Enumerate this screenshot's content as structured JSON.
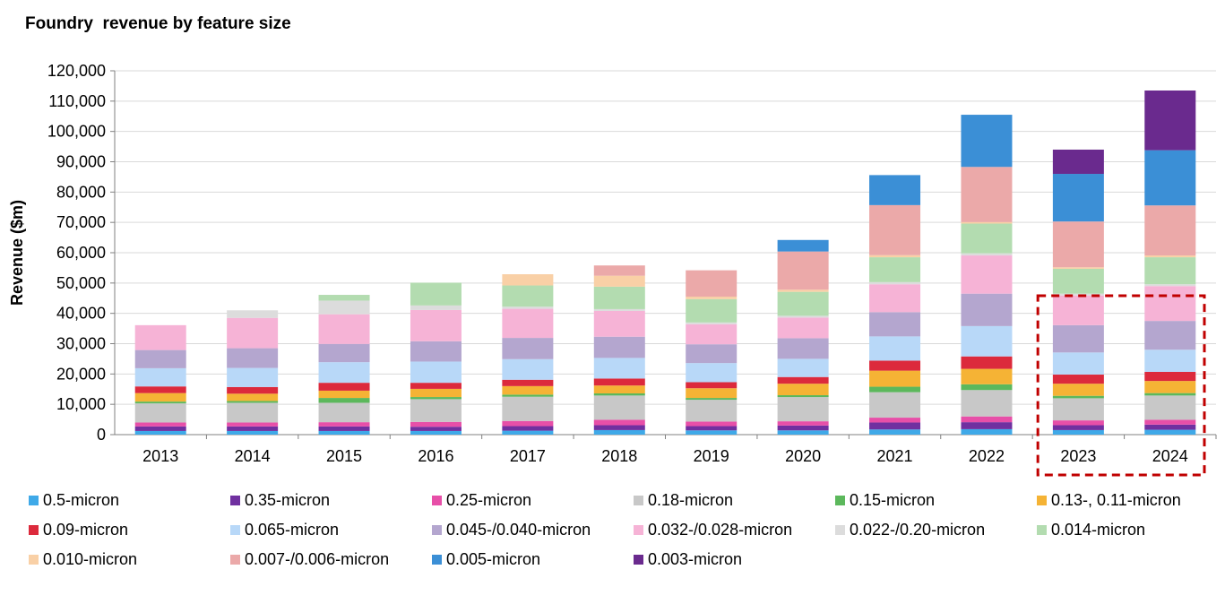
{
  "chart_data": {
    "type": "bar",
    "stacked": true,
    "title": "Foundry  revenue by feature size",
    "xlabel": "",
    "ylabel": "Revenue ($m)",
    "ylim": [
      0,
      120000
    ],
    "yticks": [
      "0",
      "10,000",
      "20,000",
      "30,000",
      "40,000",
      "50,000",
      "60,000",
      "70,000",
      "80,000",
      "90,000",
      "100,000",
      "110,000",
      "120,000"
    ],
    "grid": true,
    "legend_position": "bottom",
    "categories": [
      "2013",
      "2014",
      "2015",
      "2016",
      "2017",
      "2018",
      "2019",
      "2020",
      "2021",
      "2022",
      "2023",
      "2024"
    ],
    "highlight": {
      "categories": [
        "2023",
        "2024"
      ],
      "style": "dashed-box",
      "color": "#c00000"
    },
    "series": [
      {
        "name": "0.5-micron",
        "color": "#3fa9e8",
        "values": [
          1200,
          1200,
          1200,
          1200,
          1300,
          1500,
          1400,
          1400,
          1700,
          1800,
          1500,
          1600
        ]
      },
      {
        "name": "0.35-micron",
        "color": "#7030a0",
        "values": [
          1500,
          1500,
          1500,
          1400,
          1500,
          1600,
          1400,
          1600,
          2300,
          2300,
          1600,
          1700
        ]
      },
      {
        "name": "0.25-micron",
        "color": "#e74fa8",
        "values": [
          1300,
          1300,
          1400,
          1600,
          1700,
          1800,
          1500,
          1400,
          1600,
          1900,
          1600,
          1600
        ]
      },
      {
        "name": "0.18-micron",
        "color": "#c8c8c8",
        "values": [
          6300,
          6500,
          6400,
          7500,
          8000,
          8000,
          7200,
          8000,
          8400,
          8700,
          7300,
          8000
        ]
      },
      {
        "name": "0.15-micron",
        "color": "#5cb85c",
        "values": [
          600,
          600,
          1600,
          700,
          700,
          700,
          600,
          600,
          1800,
          1900,
          800,
          800
        ]
      },
      {
        "name": "0.13-, 0.11-micron",
        "color": "#f5b335",
        "values": [
          2800,
          2400,
          2400,
          2700,
          2800,
          2600,
          3200,
          3800,
          5300,
          5100,
          4000,
          4000
        ]
      },
      {
        "name": "0.09-micron",
        "color": "#dc2a3c",
        "values": [
          2200,
          2200,
          2600,
          2000,
          2100,
          2300,
          2000,
          2200,
          3300,
          4100,
          3000,
          3000
        ]
      },
      {
        "name": "0.065-micron",
        "color": "#b8d8f8",
        "values": [
          6000,
          6300,
          6800,
          7000,
          6800,
          6800,
          6300,
          6000,
          8000,
          10000,
          7300,
          7300
        ]
      },
      {
        "name": "0.045-/0.040-micron",
        "color": "#b4a6cf",
        "values": [
          6000,
          6500,
          6000,
          6700,
          7000,
          7000,
          6200,
          6800,
          8000,
          10700,
          9000,
          9500
        ]
      },
      {
        "name": "0.032-/0.028-micron",
        "color": "#f6b3d6",
        "values": [
          8200,
          10000,
          9800,
          10300,
          9600,
          8500,
          6600,
          6800,
          9200,
          12600,
          9800,
          11500
        ]
      },
      {
        "name": "0.022-/0.20-micron",
        "color": "#dcdcdc",
        "values": [
          0,
          2500,
          4500,
          1500,
          700,
          600,
          600,
          600,
          700,
          700,
          600,
          600
        ]
      },
      {
        "name": "0.014-micron",
        "color": "#b3dcb0",
        "values": [
          0,
          0,
          1900,
          7500,
          7000,
          7400,
          7700,
          7900,
          8200,
          9800,
          8200,
          8900
        ]
      },
      {
        "name": "0.010-micron",
        "color": "#f9d0a6",
        "values": [
          0,
          0,
          0,
          0,
          3700,
          3600,
          800,
          700,
          700,
          500,
          500,
          600
        ]
      },
      {
        "name": "0.007-/0.006-micron",
        "color": "#eba9a9",
        "values": [
          0,
          0,
          0,
          0,
          0,
          3400,
          8700,
          12600,
          16500,
          18200,
          15100,
          16500
        ]
      },
      {
        "name": "0.005-micron",
        "color": "#3b8fd6",
        "values": [
          0,
          0,
          0,
          0,
          0,
          0,
          0,
          3800,
          9900,
          17200,
          15700,
          18200
        ]
      },
      {
        "name": "0.003-micron",
        "color": "#6a2a8e",
        "values": [
          0,
          0,
          0,
          0,
          0,
          0,
          0,
          0,
          0,
          0,
          8000,
          19700
        ]
      }
    ]
  }
}
